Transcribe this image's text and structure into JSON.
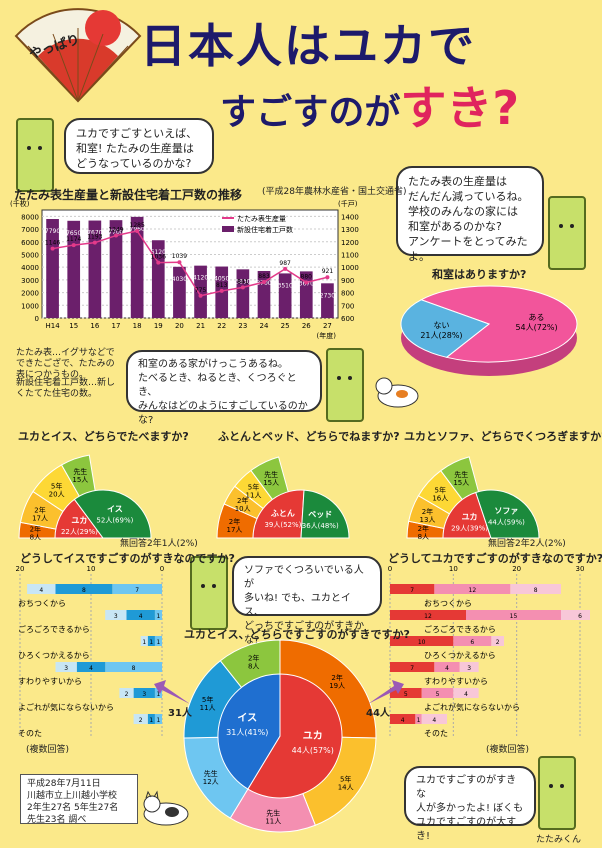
{
  "header": {
    "fan_text": "やっぱり",
    "title": "日本人はユカで",
    "subtitle_prefix": "すごすのが",
    "subtitle_highlight": "すき?"
  },
  "intro_bubble": {
    "lines": [
      "ユカですごすといえば、",
      "和室! たたみの生産量は",
      "どうなっているのかな?"
    ]
  },
  "right_bubble": {
    "lines": [
      "たたみ表の生産量は",
      "だんだん減っているね。",
      "学校のみんなの家には",
      "和室があるのかな?",
      "アンケートをとってみたよ。"
    ]
  },
  "middle_bubble": {
    "lines": [
      "和室のある家がけっこうあるね。",
      "たべるとき、ねるとき、くつろぐとき、",
      "みんなはどのようにすごしているのかな?"
    ]
  },
  "sofa_bubble": {
    "lines": [
      "ソファでくつろいでいる人が",
      "多いね! でも、ユカとイス、",
      "どっちですごすのがすきかな?"
    ]
  },
  "bottom_bubble": {
    "lines": [
      "ユカですごすのがすきな",
      "人が多かったよ! ぼくも",
      "ユカですごすのが大すき!"
    ]
  },
  "notes": {
    "tatami": "たたみ表…イグサなどでできたござで、たたみの表につかうもの。",
    "housing": "新設住宅着工戸数…新しくたてた住宅の数。",
    "source": "(平成28年農林水産省・国土交通省)"
  },
  "credit": {
    "lines": [
      "平成28年7月11日",
      "川越市立上川越小学校",
      "2年生27名 5年生27名",
      "先生23名 調べ"
    ]
  },
  "tatami_label": "たたみくん",
  "chart_data": [
    {
      "type": "bar",
      "title": "たたみ表生産量と新設住宅着工戸数の推移",
      "categories": [
        "H14",
        "15",
        "16",
        "17",
        "18",
        "19",
        "20",
        "21",
        "22",
        "23",
        "24",
        "25",
        "26",
        "27"
      ],
      "xlabel": "(年度)",
      "y_left_unit": "(千枚)",
      "y_right_unit": "(千戸)",
      "y_left_ticks": [
        0,
        1000,
        2000,
        3000,
        4000,
        5000,
        6000,
        7000,
        8000
      ],
      "y_right_ticks": [
        600,
        700,
        800,
        900,
        1000,
        1100,
        1200,
        1300,
        1400
      ],
      "ylim": [
        0,
        8500
      ],
      "series": [
        {
          "name": "新設住宅着工戸数",
          "axis": "left",
          "color": "#6b1f6b",
          "values": [
            7790,
            7650,
            7670,
            7700,
            7960,
            6120,
            4030,
            4120,
            4050,
            3830,
            3700,
            3510,
            3670,
            2730
          ]
        },
        {
          "name": "たたみ表生産量",
          "axis": "right",
          "color": "#e33a8a",
          "values": [
            1146,
            1174,
            1193,
            1249,
            1285,
            1036,
            1039,
            775,
            813,
            841,
            883,
            987,
            880,
            921
          ]
        }
      ]
    },
    {
      "type": "pie",
      "title": "和室はありますか?",
      "slices": [
        {
          "label": "ある",
          "value": 54,
          "pct": "54人(72%)",
          "color": "#f2559b"
        },
        {
          "label": "ない",
          "value": 21,
          "pct": "21人(28%)",
          "color": "#5ab3e0"
        }
      ]
    },
    {
      "type": "pie",
      "title": "ユカとイス、どちらでたべますか?",
      "slices": [
        {
          "label": "イス",
          "value": 52,
          "text": "52人(69%)",
          "color": "#1b8a3c"
        },
        {
          "label": "先生",
          "value": 15,
          "text": "15人",
          "color": "#8cc63e"
        },
        {
          "label": "5年",
          "value": 20,
          "text": "20人",
          "color": "#fdd835"
        },
        {
          "label": "2年",
          "value": 17,
          "text": "17人",
          "color": "#fbc02d"
        },
        {
          "label": "ユカ",
          "value": 22,
          "text": "22人(29%)",
          "color": "#e53935"
        },
        {
          "label": "2年",
          "value": 8,
          "text": "8人",
          "color": "#ef6c00"
        }
      ],
      "note": "無回答2年1人(2%)"
    },
    {
      "type": "pie",
      "title": "ふとんとベッド、どちらでねますか?",
      "slices": [
        {
          "label": "ベッド",
          "value": 36,
          "text": "36人(48%)",
          "color": "#1b8a3c"
        },
        {
          "label": "先生",
          "value": 15,
          "text": "15人",
          "color": "#8cc63e"
        },
        {
          "label": "5年",
          "value": 11,
          "text": "11人",
          "color": "#fdd835"
        },
        {
          "label": "2年",
          "value": 10,
          "text": "10人",
          "color": "#fbc02d"
        },
        {
          "label": "ふとん",
          "value": 39,
          "text": "39人(52%)",
          "color": "#e53935"
        },
        {
          "label": "2年",
          "value": 17,
          "text": "17人",
          "color": "#ef6c00"
        }
      ]
    },
    {
      "type": "pie",
      "title": "ユカとソファ、どちらでくつろぎますか?",
      "slices": [
        {
          "label": "ソファ",
          "value": 44,
          "text": "44人(59%)",
          "color": "#1b8a3c"
        },
        {
          "label": "先生",
          "value": 15,
          "text": "15人",
          "color": "#8cc63e"
        },
        {
          "label": "5年",
          "value": 16,
          "text": "16人",
          "color": "#fdd835"
        },
        {
          "label": "2年",
          "value": 13,
          "text": "13人",
          "color": "#fbc02d"
        },
        {
          "label": "ユカ",
          "value": 29,
          "text": "29人(39%)",
          "color": "#e53935"
        },
        {
          "label": "2年",
          "value": 8,
          "text": "8人",
          "color": "#ef6c00"
        }
      ],
      "note": "無回答2年2人(2%)"
    },
    {
      "type": "bar",
      "title": "どうしてイスですごすのがすきなのですか?",
      "orientation": "horizontal",
      "axis_ticks": [
        20,
        10,
        0
      ],
      "categories": [
        "おちつくから",
        "ごろごろできるから",
        "ひろくつかえるから",
        "すわりやすいから",
        "よごれが気にならないから",
        "そのた"
      ],
      "series": [
        {
          "name": "2年",
          "color": "#6ec6f1",
          "values": [
            7,
            1,
            1,
            8,
            1,
            1
          ]
        },
        {
          "name": "5年",
          "color": "#1f9ad6",
          "values": [
            8,
            4,
            1,
            4,
            3,
            1
          ]
        },
        {
          "name": "先生",
          "color": "#c8e6f5",
          "values": [
            4,
            3,
            1,
            3,
            2,
            2
          ]
        }
      ],
      "note": "(複数回答)"
    },
    {
      "type": "bar",
      "title": "どうしてユカですごすのがすきなのですか?",
      "orientation": "horizontal",
      "axis_ticks": [
        0,
        10,
        20,
        30
      ],
      "categories": [
        "おちつくから",
        "ごろごろできるから",
        "ひろくつかえるから",
        "すわりやすいから",
        "よごれが気にならないから",
        "そのた"
      ],
      "series": [
        {
          "name": "2年",
          "color": "#e53935",
          "values": [
            7,
            12,
            10,
            7,
            5,
            4
          ]
        },
        {
          "name": "5年",
          "color": "#f48fb1",
          "values": [
            12,
            15,
            6,
            4,
            5,
            1
          ]
        },
        {
          "name": "先生",
          "color": "#f8c7d8",
          "values": [
            8,
            6,
            2,
            3,
            4,
            4
          ]
        }
      ],
      "note": "(複数回答)"
    },
    {
      "type": "pie",
      "title": "ユカとイス、どちらですごすのがすきですか?",
      "slices": [
        {
          "label": "ユカ",
          "value": 44,
          "text": "44人(57%)",
          "color": "#e53935"
        },
        {
          "label": "イス",
          "value": 31,
          "text": "31人(41%)",
          "color": "#1f6fd0"
        }
      ],
      "outer": [
        {
          "label": "2年",
          "value": 19,
          "text": "19人",
          "color": "#ef6c00"
        },
        {
          "label": "5年",
          "value": 14,
          "text": "14人",
          "color": "#fbc02d"
        },
        {
          "label": "先生",
          "value": 11,
          "text": "11人",
          "color": "#f48fb1"
        },
        {
          "label": "先生",
          "value": 12,
          "text": "12人",
          "color": "#6ec6f1"
        },
        {
          "label": "5年",
          "value": 11,
          "text": "11人",
          "color": "#1f9ad6"
        },
        {
          "label": "2年",
          "value": 8,
          "text": "8人",
          "color": "#8cc63e"
        }
      ],
      "left_total": "31人",
      "right_total": "44人"
    }
  ]
}
